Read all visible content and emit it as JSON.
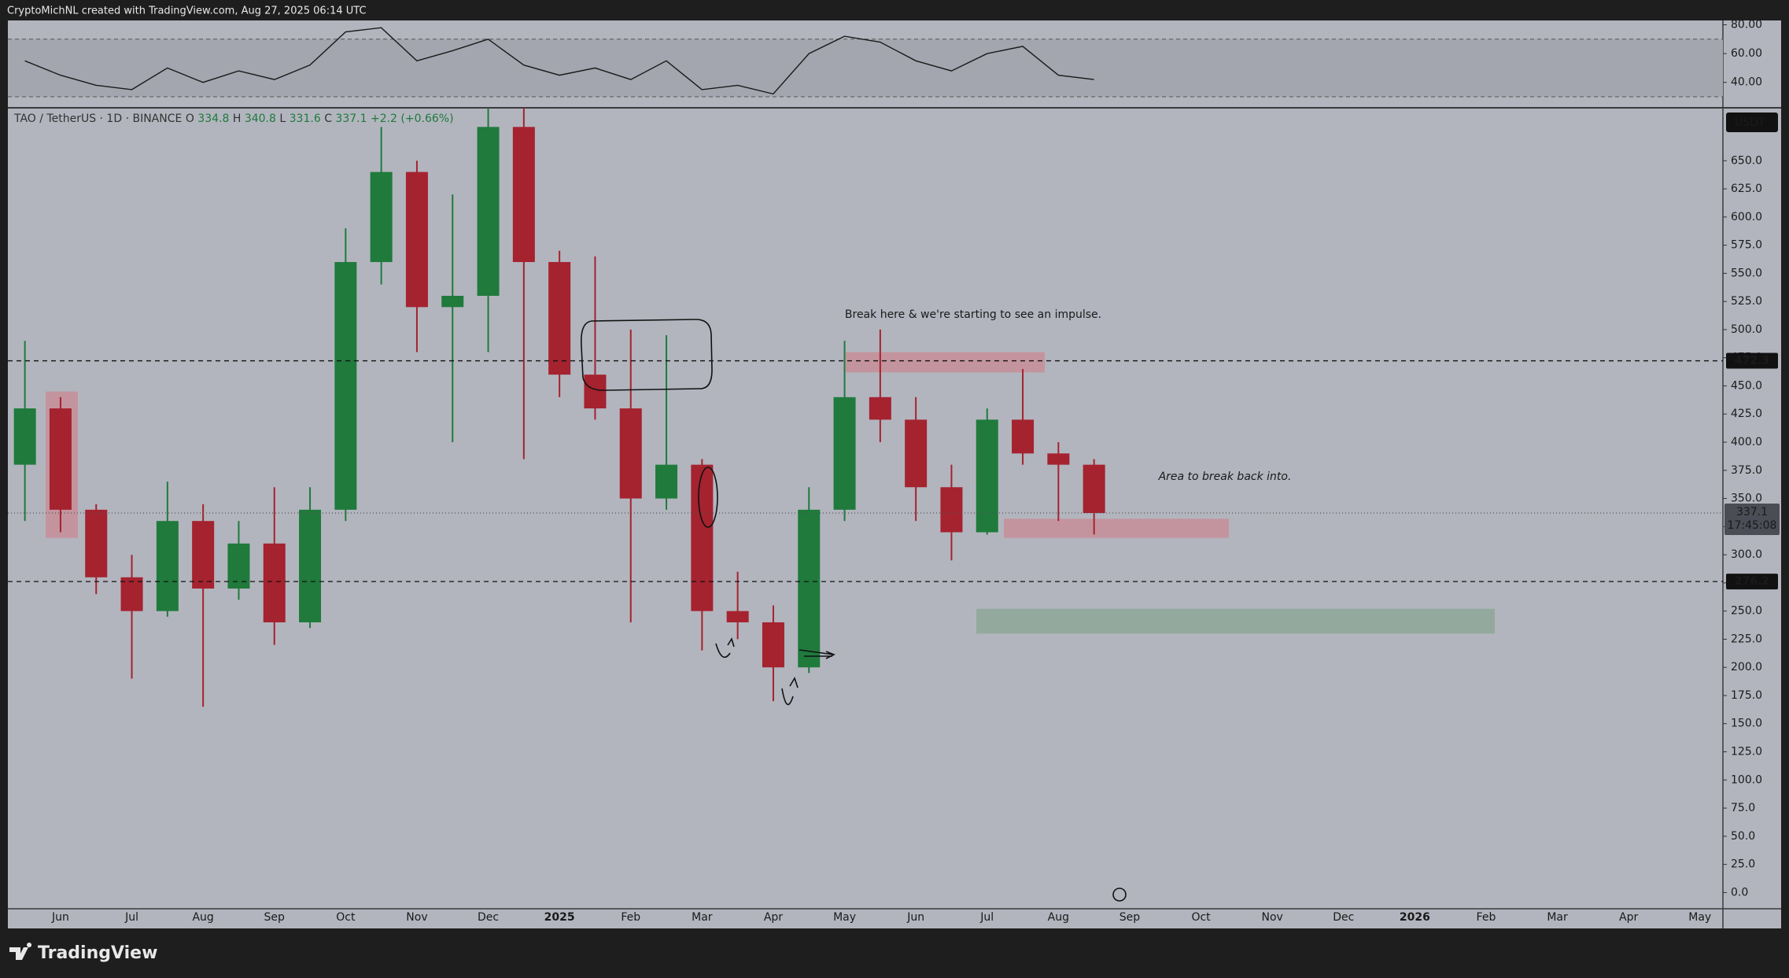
{
  "header": {
    "title": "CryptoMichNL created with TradingView.com, Aug 27, 2025 06:14 UTC"
  },
  "footer": {
    "logo": "TradingView"
  },
  "chart_data": [
    {
      "type": "line",
      "color": "#1a1a1a",
      "band": [
        30,
        70
      ],
      "band_color": "#a3a6ae",
      "ylim": [
        24,
        83
      ],
      "yticks": [
        {
          "value": 40,
          "label": "40.00"
        },
        {
          "value": 60,
          "label": "60.00"
        },
        {
          "value": 80,
          "label": "80.00"
        }
      ],
      "values": [
        55,
        45,
        38,
        35,
        50,
        40,
        48,
        42,
        52,
        75,
        78,
        55,
        62,
        70,
        52,
        45,
        50,
        42,
        55,
        35,
        38,
        32,
        60,
        72,
        68,
        55,
        48,
        60,
        65,
        45,
        42,
        null,
        null,
        null,
        null,
        null,
        null,
        null,
        null,
        null,
        null,
        null,
        null,
        null,
        null,
        null,
        null,
        null,
        null
      ]
    },
    {
      "type": "candlestick",
      "symbol": "TAO / TetherUS · 1D · BINANCE",
      "ohlc": [
        {
          "label": "O",
          "value": 334.8
        },
        {
          "label": "H",
          "value": 340.8
        },
        {
          "label": "L",
          "value": 331.6
        },
        {
          "label": "C",
          "value": 337.1
        }
      ],
      "change": "+2.2 (+0.66%)",
      "currency": "USDT",
      "up_color": "#1f7a3c",
      "down_color": "#a5222f",
      "categories": [
        null,
        "Jun",
        null,
        "Jul",
        null,
        "Aug",
        null,
        "Sep",
        null,
        "Oct",
        null,
        "Nov",
        null,
        "Dec",
        null,
        "2025",
        null,
        "Feb",
        null,
        "Mar",
        null,
        "Apr",
        null,
        "May",
        null,
        "Jun",
        null,
        "Jul",
        null,
        "Aug",
        null,
        "Sep",
        null,
        "Oct",
        null,
        "Nov",
        null,
        "Dec",
        null,
        "2026",
        null,
        "Feb",
        null,
        "Mar",
        null,
        "Apr",
        null,
        "May",
        null
      ],
      "open": [
        380,
        430,
        340,
        280,
        250,
        330,
        270,
        310,
        240,
        340,
        560,
        640,
        520,
        530,
        680,
        560,
        460,
        430,
        350,
        380,
        250,
        240,
        200,
        340,
        440,
        420,
        360,
        320,
        420,
        390,
        380,
        null,
        null,
        null,
        null,
        null,
        null,
        null,
        null,
        null,
        null,
        null,
        null,
        null,
        null,
        null,
        null,
        null,
        null
      ],
      "high": [
        490,
        440,
        345,
        300,
        365,
        345,
        330,
        360,
        360,
        590,
        680,
        650,
        620,
        700,
        700,
        570,
        565,
        500,
        495,
        385,
        285,
        255,
        360,
        490,
        500,
        440,
        380,
        430,
        465,
        400,
        385,
        null,
        null,
        null,
        null,
        null,
        null,
        null,
        null,
        null,
        null,
        null,
        null,
        null,
        null,
        null,
        null,
        null,
        null
      ],
      "low": [
        330,
        320,
        265,
        190,
        245,
        165,
        260,
        220,
        235,
        330,
        540,
        480,
        400,
        480,
        385,
        440,
        420,
        240,
        340,
        215,
        225,
        170,
        195,
        330,
        400,
        330,
        295,
        318,
        380,
        330,
        318,
        null,
        null,
        null,
        null,
        null,
        null,
        null,
        null,
        null,
        null,
        null,
        null,
        null,
        null,
        null,
        null,
        null,
        null
      ],
      "close": [
        430,
        340,
        280,
        250,
        330,
        270,
        310,
        240,
        340,
        560,
        640,
        520,
        530,
        680,
        560,
        460,
        430,
        350,
        380,
        250,
        240,
        200,
        340,
        440,
        420,
        360,
        320,
        420,
        390,
        380,
        337.1,
        null,
        null,
        null,
        null,
        null,
        null,
        null,
        null,
        null,
        null,
        null,
        null,
        null,
        null,
        null,
        null,
        null,
        null
      ],
      "ylim": [
        -13,
        697
      ],
      "yticks": [
        {
          "value": 0,
          "label": "0.0"
        },
        {
          "value": 25,
          "label": "25.0"
        },
        {
          "value": 50,
          "label": "50.0"
        },
        {
          "value": 75,
          "label": "75.0"
        },
        {
          "value": 100,
          "label": "100.0"
        },
        {
          "value": 125,
          "label": "125.0"
        },
        {
          "value": 150,
          "label": "150.0"
        },
        {
          "value": 175,
          "label": "175.0"
        },
        {
          "value": 200,
          "label": "200.0"
        },
        {
          "value": 225,
          "label": "225.0"
        },
        {
          "value": 250,
          "label": "250.0"
        },
        {
          "value": 275,
          "label": "275.0"
        },
        {
          "value": 300,
          "label": "300.0"
        },
        {
          "value": 325,
          "label": "325.0"
        },
        {
          "value": 350,
          "label": "350.0"
        },
        {
          "value": 375,
          "label": "375.0"
        },
        {
          "value": 400,
          "label": "400.0"
        },
        {
          "value": 425,
          "label": "425.0"
        },
        {
          "value": 450,
          "label": "450.0"
        },
        {
          "value": 475,
          "label": "475.0"
        },
        {
          "value": 500,
          "label": "500.0"
        },
        {
          "value": 525,
          "label": "525.0"
        },
        {
          "value": 550,
          "label": "550.0"
        },
        {
          "value": 575,
          "label": "575.0"
        },
        {
          "value": 600,
          "label": "600.0"
        },
        {
          "value": 625,
          "label": "625.0"
        },
        {
          "value": 650,
          "label": "650.0"
        }
      ],
      "levels": [
        472.3,
        276.2
      ],
      "current_price": 337.1,
      "countdown": "17:45:08",
      "zones": [
        {
          "low": 315,
          "high": 445,
          "color": "#c98a93"
        },
        {
          "low": 462,
          "high": 480,
          "color": "#c98a93"
        },
        {
          "low": 315,
          "high": 332,
          "color": "#c98a93"
        },
        {
          "low": 230,
          "high": 252,
          "color": "#88a591"
        }
      ],
      "annotations": [
        {
          "text": "Break here & we're starting to see an impulse."
        },
        {
          "text": "Area to break back into."
        }
      ]
    }
  ]
}
